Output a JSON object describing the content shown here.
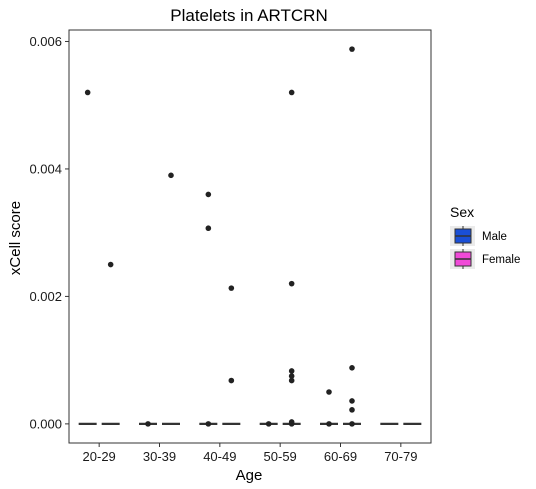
{
  "chart_data": {
    "type": "box",
    "title": "Platelets in ARTCRN",
    "xlabel": "Age",
    "ylabel": "xCell score",
    "categories": [
      "20-29",
      "30-39",
      "40-49",
      "50-59",
      "60-69",
      "70-79"
    ],
    "yticks": [
      0.0,
      0.002,
      0.004,
      0.006
    ],
    "ytick_labels": [
      "0.000",
      "0.002",
      "0.004",
      "0.006"
    ],
    "ylim": [
      -0.0003,
      0.00618
    ],
    "grid": false,
    "legend": {
      "title": "Sex",
      "position": "right",
      "entries": [
        {
          "name": "Male",
          "color": "#1a4fd6"
        },
        {
          "name": "Female",
          "color": "#f04ad8"
        }
      ]
    },
    "series": [
      {
        "name": "Male",
        "color": "#1a4fd6",
        "groups": [
          {
            "category": "20-29",
            "median": 0,
            "q1": 0,
            "q3": 0,
            "whisker_low": 0,
            "whisker_high": 0,
            "outliers": [
              0.0052
            ]
          },
          {
            "category": "30-39",
            "median": 0,
            "q1": 0,
            "q3": 0,
            "whisker_low": 0,
            "whisker_high": 0,
            "outliers": [
              0.0
            ]
          },
          {
            "category": "40-49",
            "median": 0,
            "q1": 0,
            "q3": 0,
            "whisker_low": 0,
            "whisker_high": 0,
            "outliers": [
              0.0036,
              0.00307,
              0.0
            ]
          },
          {
            "category": "50-59",
            "median": 0,
            "q1": 0,
            "q3": 0,
            "whisker_low": 0,
            "whisker_high": 0,
            "outliers": [
              0.0
            ]
          },
          {
            "category": "60-69",
            "median": 0,
            "q1": 0,
            "q3": 0,
            "whisker_low": 0,
            "whisker_high": 0,
            "outliers": [
              0.0005,
              0.0
            ]
          },
          {
            "category": "70-79",
            "median": 0,
            "q1": 0,
            "q3": 0,
            "whisker_low": 0,
            "whisker_high": 0,
            "outliers": []
          }
        ]
      },
      {
        "name": "Female",
        "color": "#f04ad8",
        "groups": [
          {
            "category": "20-29",
            "median": 0,
            "q1": 0,
            "q3": 0,
            "whisker_low": 0,
            "whisker_high": 0,
            "outliers": [
              0.0025
            ]
          },
          {
            "category": "30-39",
            "median": 0,
            "q1": 0,
            "q3": 0,
            "whisker_low": 0,
            "whisker_high": 0,
            "outliers": [
              0.0039
            ]
          },
          {
            "category": "40-49",
            "median": 0,
            "q1": 0,
            "q3": 0,
            "whisker_low": 0,
            "whisker_high": 0,
            "outliers": [
              0.00213,
              0.00068
            ]
          },
          {
            "category": "50-59",
            "median": 0,
            "q1": 0,
            "q3": 0,
            "whisker_low": 0,
            "whisker_high": 0,
            "outliers": [
              0.0052,
              0.0022,
              0.00083,
              0.00075,
              0.00068,
              3e-05,
              0.0
            ]
          },
          {
            "category": "60-69",
            "median": 0,
            "q1": 0,
            "q3": 0,
            "whisker_low": 0,
            "whisker_high": 0,
            "outliers": [
              0.00588,
              0.00088,
              0.00036,
              0.00022,
              0.0
            ]
          },
          {
            "category": "70-79",
            "median": 0,
            "q1": 0,
            "q3": 0,
            "whisker_low": 0,
            "whisker_high": 0,
            "outliers": []
          }
        ]
      }
    ]
  }
}
